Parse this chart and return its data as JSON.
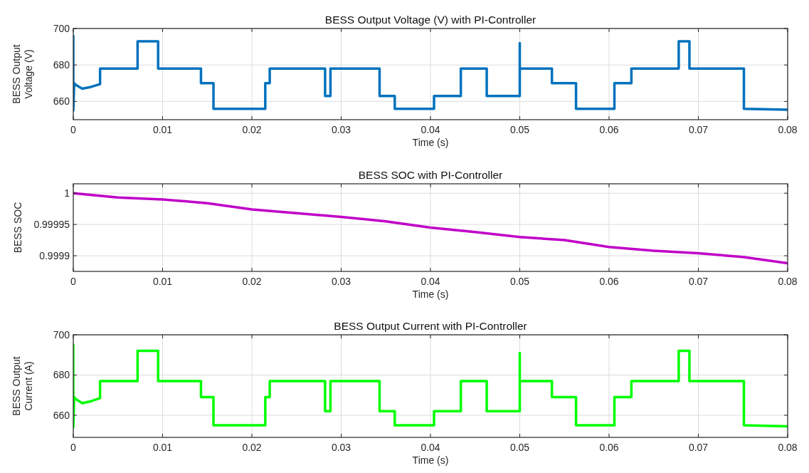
{
  "chart_data": [
    {
      "type": "line",
      "title": "BESS Output Voltage (V) with PI-Controller",
      "xlabel": "Time (s)",
      "ylabel": "BESS Output\nVoltage (V)",
      "xlim": [
        0,
        0.08
      ],
      "xticks": [
        0,
        0.01,
        0.02,
        0.03,
        0.04,
        0.05,
        0.06,
        0.07,
        0.08
      ],
      "ylim": [
        650,
        700
      ],
      "yticks": [
        660,
        680,
        700
      ],
      "grid": true,
      "series": [
        {
          "color": "#0072bd",
          "x": [
            0,
            0,
            0.0001,
            0.0003,
            0.001,
            0.002,
            0.003,
            0.003,
            0.0072,
            0.0072,
            0.0095,
            0.0095,
            0.0143,
            0.0143,
            0.0157,
            0.0157,
            0.0215,
            0.0215,
            0.022,
            0.022,
            0.0282,
            0.0282,
            0.0288,
            0.0288,
            0.0343,
            0.0343,
            0.036,
            0.036,
            0.0404,
            0.0404,
            0.0434,
            0.0434,
            0.0463,
            0.0463,
            0.05,
            0.05,
            0.05,
            0.0536,
            0.0536,
            0.0563,
            0.0563,
            0.0606,
            0.0606,
            0.0625,
            0.0625,
            0.0678,
            0.0678,
            0.069,
            0.069,
            0.0751,
            0.0751,
            0.08
          ],
          "values": [
            696,
            655,
            670,
            669,
            667,
            668,
            669.5,
            678,
            678,
            693,
            693,
            678,
            678,
            670,
            670,
            656,
            656,
            670,
            670,
            678,
            678,
            663,
            663,
            678,
            678,
            663,
            663,
            656,
            656,
            663,
            663,
            678,
            678,
            663,
            663,
            692,
            678,
            678,
            670,
            670,
            656,
            656,
            670,
            670,
            678,
            678,
            693,
            693,
            678,
            678,
            656,
            655.5
          ]
        }
      ]
    },
    {
      "type": "line",
      "title": "BESS SOC with PI-Controller",
      "xlabel": "Time (s)",
      "ylabel": "BESS SOC",
      "xlim": [
        0,
        0.08
      ],
      "xticks": [
        0,
        0.01,
        0.02,
        0.03,
        0.04,
        0.05,
        0.06,
        0.07,
        0.08
      ],
      "ylim": [
        0.999875,
        1.000015
      ],
      "yticks": [
        0.9999,
        0.99995,
        1
      ],
      "grid": true,
      "series": [
        {
          "color": "#c000c8",
          "x": [
            0,
            0.005,
            0.01,
            0.015,
            0.02,
            0.025,
            0.03,
            0.035,
            0.04,
            0.045,
            0.05,
            0.055,
            0.06,
            0.065,
            0.07,
            0.075,
            0.08
          ],
          "values": [
            1,
            0.999993,
            0.99999,
            0.999984,
            0.999974,
            0.999968,
            0.999962,
            0.999955,
            0.999945,
            0.999938,
            0.99993,
            0.999925,
            0.999914,
            0.999908,
            0.999904,
            0.999898,
            0.999888
          ]
        }
      ]
    },
    {
      "type": "line",
      "title": "BESS Output Current with PI-Controller",
      "xlabel": "Time (s)",
      "ylabel": "BESS Output\nCurrent (A)",
      "xlim": [
        0,
        0.08
      ],
      "xticks": [
        0,
        0.01,
        0.02,
        0.03,
        0.04,
        0.05,
        0.06,
        0.07,
        0.08
      ],
      "ylim": [
        649,
        700
      ],
      "yticks": [
        660,
        680,
        700
      ],
      "grid": true,
      "series": [
        {
          "color": "#00ff00",
          "x": [
            0,
            0,
            0.0001,
            0.0003,
            0.001,
            0.002,
            0.003,
            0.003,
            0.0072,
            0.0072,
            0.0095,
            0.0095,
            0.0143,
            0.0143,
            0.0157,
            0.0157,
            0.0215,
            0.0215,
            0.022,
            0.022,
            0.0282,
            0.0282,
            0.0288,
            0.0288,
            0.0343,
            0.0343,
            0.036,
            0.036,
            0.0404,
            0.0404,
            0.0434,
            0.0434,
            0.0463,
            0.0463,
            0.05,
            0.05,
            0.05,
            0.0536,
            0.0536,
            0.0563,
            0.0563,
            0.0606,
            0.0606,
            0.0625,
            0.0625,
            0.0678,
            0.0678,
            0.069,
            0.069,
            0.0751,
            0.0751,
            0.08
          ],
          "values": [
            695,
            654,
            669,
            668,
            666,
            667,
            668.5,
            677,
            677,
            692,
            692,
            677,
            677,
            669,
            669,
            655,
            655,
            669,
            669,
            677,
            677,
            662,
            662,
            677,
            677,
            662,
            662,
            655,
            655,
            662,
            662,
            677,
            677,
            662,
            662,
            691,
            677,
            677,
            669,
            669,
            655,
            655,
            669,
            669,
            677,
            677,
            692,
            692,
            677,
            677,
            655,
            654.5
          ]
        }
      ]
    }
  ]
}
